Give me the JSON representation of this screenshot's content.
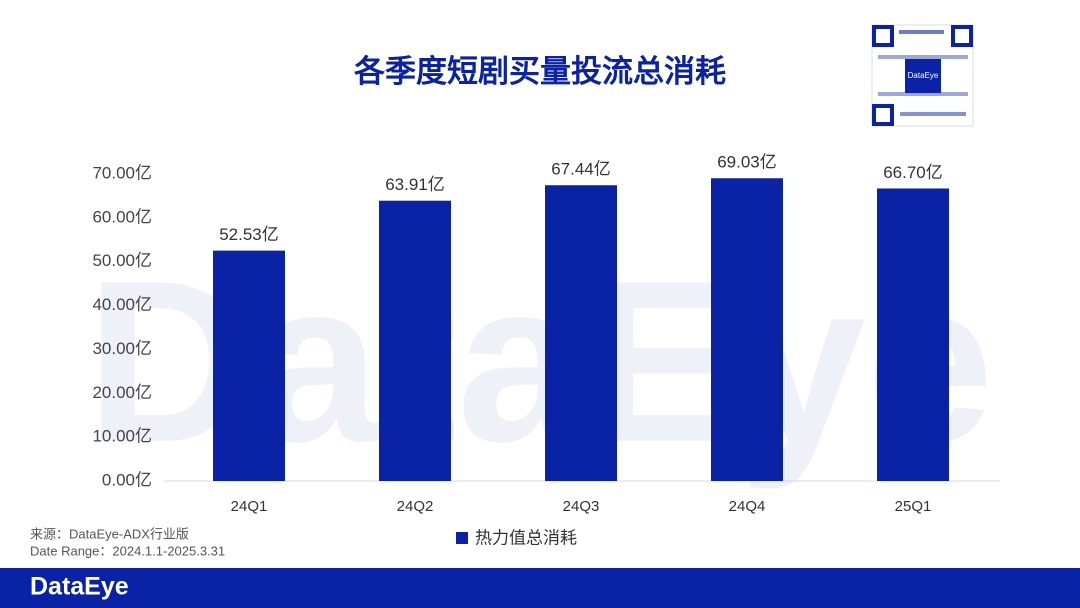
{
  "chart_data": {
    "type": "bar",
    "title": "各季度短剧买量投流总消耗",
    "categories": [
      "24Q1",
      "24Q2",
      "24Q3",
      "24Q4",
      "25Q1"
    ],
    "series": [
      {
        "name": "热力值总消耗",
        "color": "#0a23a6",
        "values": [
          52.53,
          63.91,
          67.44,
          69.03,
          66.7
        ],
        "value_labels": [
          "52.53亿",
          "63.91亿",
          "67.44亿",
          "69.03亿",
          "66.70亿"
        ]
      }
    ],
    "ylim": [
      0,
      70
    ],
    "yticks": [
      {
        "value": 0,
        "label": "0.00亿"
      },
      {
        "value": 10,
        "label": "10.00亿"
      },
      {
        "value": 20,
        "label": "20.00亿"
      },
      {
        "value": 30,
        "label": "30.00亿"
      },
      {
        "value": 40,
        "label": "40.00亿"
      },
      {
        "value": 50,
        "label": "50.00亿"
      },
      {
        "value": 60,
        "label": "60.00亿"
      },
      {
        "value": 70,
        "label": "70.00亿"
      }
    ],
    "grid": false,
    "legend": "bottom"
  },
  "source": "来源：DataEye-ADX行业版",
  "date_range": "Date Range：2024.1.1-2025.3.31",
  "watermark": "DataEye",
  "qr_label": "DataEye",
  "brand": "DataEye"
}
